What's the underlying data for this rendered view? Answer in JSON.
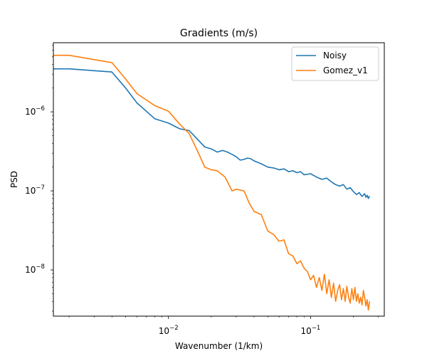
{
  "chart_data": {
    "type": "line",
    "title": "Gradients (m/s)",
    "xlabel": "Wavenumber (1/km)",
    "ylabel": "PSD",
    "xscale": "log",
    "yscale": "log",
    "xlim": [
      0.00155,
      0.33
    ],
    "ylim": [
      2.6e-09,
      7.5e-06
    ],
    "grid": false,
    "legend_position": "top-right",
    "x_ticks": [
      {
        "value": 0.01,
        "base": "10",
        "exp": "−2"
      },
      {
        "value": 0.1,
        "base": "10",
        "exp": "−1"
      }
    ],
    "y_ticks": [
      {
        "value": 1e-08,
        "base": "10",
        "exp": "−8"
      },
      {
        "value": 1e-07,
        "base": "10",
        "exp": "−7"
      },
      {
        "value": 1e-06,
        "base": "10",
        "exp": "−6"
      }
    ],
    "series": [
      {
        "name": "Noisy",
        "color": "#1f77b4",
        "points": [
          [
            0.00155,
            3.5e-06
          ],
          [
            0.002,
            3.5e-06
          ],
          [
            0.004,
            3.2e-06
          ],
          [
            0.005,
            2e-06
          ],
          [
            0.006,
            1.3e-06
          ],
          [
            0.008,
            8.2e-07
          ],
          [
            0.01,
            7.2e-07
          ],
          [
            0.012,
            6.1e-07
          ],
          [
            0.014,
            5.8e-07
          ],
          [
            0.016,
            4.5e-07
          ],
          [
            0.018,
            3.6e-07
          ],
          [
            0.02,
            3.4e-07
          ],
          [
            0.022,
            3.1e-07
          ],
          [
            0.024,
            3.25e-07
          ],
          [
            0.026,
            3.1e-07
          ],
          [
            0.028,
            2.9e-07
          ],
          [
            0.03,
            2.7e-07
          ],
          [
            0.032,
            2.45e-07
          ],
          [
            0.034,
            2.5e-07
          ],
          [
            0.036,
            2.6e-07
          ],
          [
            0.038,
            2.55e-07
          ],
          [
            0.04,
            2.4e-07
          ],
          [
            0.045,
            2.2e-07
          ],
          [
            0.05,
            2e-07
          ],
          [
            0.055,
            1.95e-07
          ],
          [
            0.06,
            1.85e-07
          ],
          [
            0.065,
            1.9e-07
          ],
          [
            0.07,
            1.75e-07
          ],
          [
            0.075,
            1.8e-07
          ],
          [
            0.08,
            1.7e-07
          ],
          [
            0.085,
            1.75e-07
          ],
          [
            0.09,
            1.6e-07
          ],
          [
            0.1,
            1.65e-07
          ],
          [
            0.11,
            1.5e-07
          ],
          [
            0.12,
            1.4e-07
          ],
          [
            0.13,
            1.45e-07
          ],
          [
            0.14,
            1.3e-07
          ],
          [
            0.15,
            1.2e-07
          ],
          [
            0.16,
            1.15e-07
          ],
          [
            0.17,
            1.2e-07
          ],
          [
            0.18,
            1.05e-07
          ],
          [
            0.19,
            1.1e-07
          ],
          [
            0.2,
            9.8e-08
          ],
          [
            0.21,
            9e-08
          ],
          [
            0.22,
            9.5e-08
          ],
          [
            0.23,
            8.5e-08
          ],
          [
            0.24,
            9.2e-08
          ],
          [
            0.245,
            8.3e-08
          ],
          [
            0.25,
            8.8e-08
          ],
          [
            0.255,
            8e-08
          ],
          [
            0.26,
            8.6e-08
          ]
        ]
      },
      {
        "name": "Gomez_v1",
        "color": "#ff7f0e",
        "points": [
          [
            0.00155,
            5.2e-06
          ],
          [
            0.002,
            5.2e-06
          ],
          [
            0.004,
            4.2e-06
          ],
          [
            0.005,
            2.6e-06
          ],
          [
            0.006,
            1.7e-06
          ],
          [
            0.008,
            1.2e-06
          ],
          [
            0.01,
            1.02e-06
          ],
          [
            0.012,
            7e-07
          ],
          [
            0.014,
            5.3e-07
          ],
          [
            0.016,
            3.2e-07
          ],
          [
            0.018,
            2e-07
          ],
          [
            0.02,
            1.85e-07
          ],
          [
            0.022,
            1.8e-07
          ],
          [
            0.025,
            1.5e-07
          ],
          [
            0.028,
            1e-07
          ],
          [
            0.03,
            1.05e-07
          ],
          [
            0.034,
            1e-07
          ],
          [
            0.037,
            7e-08
          ],
          [
            0.04,
            5.5e-08
          ],
          [
            0.045,
            5e-08
          ],
          [
            0.05,
            3.1e-08
          ],
          [
            0.055,
            2.8e-08
          ],
          [
            0.06,
            2.3e-08
          ],
          [
            0.065,
            2.4e-08
          ],
          [
            0.07,
            1.6e-08
          ],
          [
            0.075,
            1.5e-08
          ],
          [
            0.08,
            1.2e-08
          ],
          [
            0.085,
            1.3e-08
          ],
          [
            0.09,
            1.05e-08
          ],
          [
            0.095,
            9.5e-09
          ],
          [
            0.1,
            7.5e-09
          ],
          [
            0.105,
            8.5e-09
          ],
          [
            0.11,
            6e-09
          ],
          [
            0.115,
            8e-09
          ],
          [
            0.12,
            5.5e-09
          ],
          [
            0.125,
            8.8e-09
          ],
          [
            0.13,
            5e-09
          ],
          [
            0.135,
            7.5e-09
          ],
          [
            0.14,
            4.5e-09
          ],
          [
            0.145,
            6.8e-09
          ],
          [
            0.15,
            4e-09
          ],
          [
            0.155,
            5.5e-09
          ],
          [
            0.16,
            6.5e-09
          ],
          [
            0.165,
            4.2e-09
          ],
          [
            0.17,
            5.8e-09
          ],
          [
            0.175,
            4e-09
          ],
          [
            0.18,
            6.2e-09
          ],
          [
            0.185,
            4.5e-09
          ],
          [
            0.19,
            3.8e-09
          ],
          [
            0.195,
            5.8e-09
          ],
          [
            0.2,
            4.2e-09
          ],
          [
            0.205,
            6e-09
          ],
          [
            0.21,
            4e-09
          ],
          [
            0.215,
            5e-09
          ],
          [
            0.22,
            3.8e-09
          ],
          [
            0.225,
            4.5e-09
          ],
          [
            0.23,
            3.6e-09
          ],
          [
            0.235,
            5.5e-09
          ],
          [
            0.24,
            4.5e-09
          ],
          [
            0.245,
            3.5e-09
          ],
          [
            0.25,
            4.2e-09
          ],
          [
            0.255,
            3.1e-09
          ],
          [
            0.26,
            4e-09
          ]
        ]
      }
    ]
  }
}
